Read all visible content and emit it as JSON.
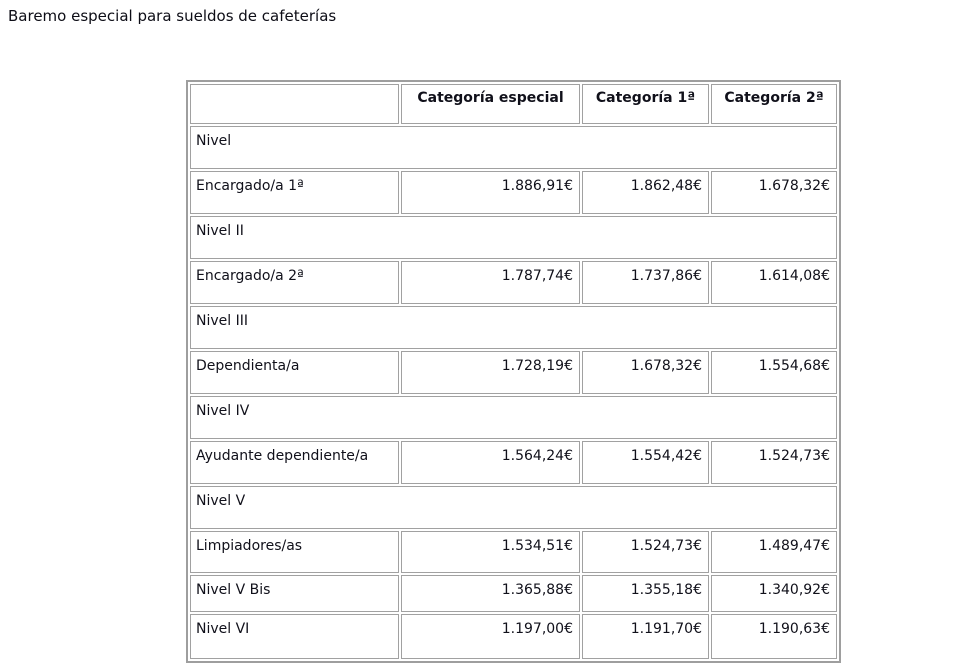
{
  "page": {
    "title": "Baremo especial para sueldos de cafeterías"
  },
  "table": {
    "columns": [
      "",
      "Categoría especial",
      "Categoría 1ª",
      "Categoría 2ª"
    ],
    "rows": [
      {
        "type": "section",
        "label": "Nivel"
      },
      {
        "type": "data",
        "label": "Encargado/a 1ª",
        "values": [
          "1.886,91€",
          "1.862,48€",
          "1.678,32€"
        ]
      },
      {
        "type": "section",
        "label": "Nivel II"
      },
      {
        "type": "data",
        "label": "Encargado/a 2ª",
        "values": [
          "1.787,74€",
          "1.737,86€",
          "1.614,08€"
        ]
      },
      {
        "type": "section",
        "label": "Nivel III"
      },
      {
        "type": "data",
        "label": "Dependienta/a",
        "values": [
          "1.728,19€",
          "1.678,32€",
          "1.554,68€"
        ]
      },
      {
        "type": "section",
        "label": "Nivel IV"
      },
      {
        "type": "data",
        "label": "Ayudante dependiente/a",
        "values": [
          "1.564,24€",
          "1.554,42€",
          "1.524,73€"
        ]
      },
      {
        "type": "section",
        "label": "Nivel V"
      },
      {
        "type": "data",
        "label": "Limpiadores/as",
        "values": [
          "1.534,51€",
          "1.524,73€",
          "1.489,47€"
        ]
      },
      {
        "type": "data",
        "label": "Nivel V Bis",
        "values": [
          "1.365,88€",
          "1.355,18€",
          "1.340,92€"
        ]
      },
      {
        "type": "data",
        "label": "Nivel VI",
        "values": [
          "1.197,00€",
          "1.191,70€",
          "1.190,63€"
        ]
      }
    ],
    "colors": {
      "outer_border": "#9e9e9e",
      "cell_border": "#a1a1a1",
      "text": "#10101a"
    }
  }
}
